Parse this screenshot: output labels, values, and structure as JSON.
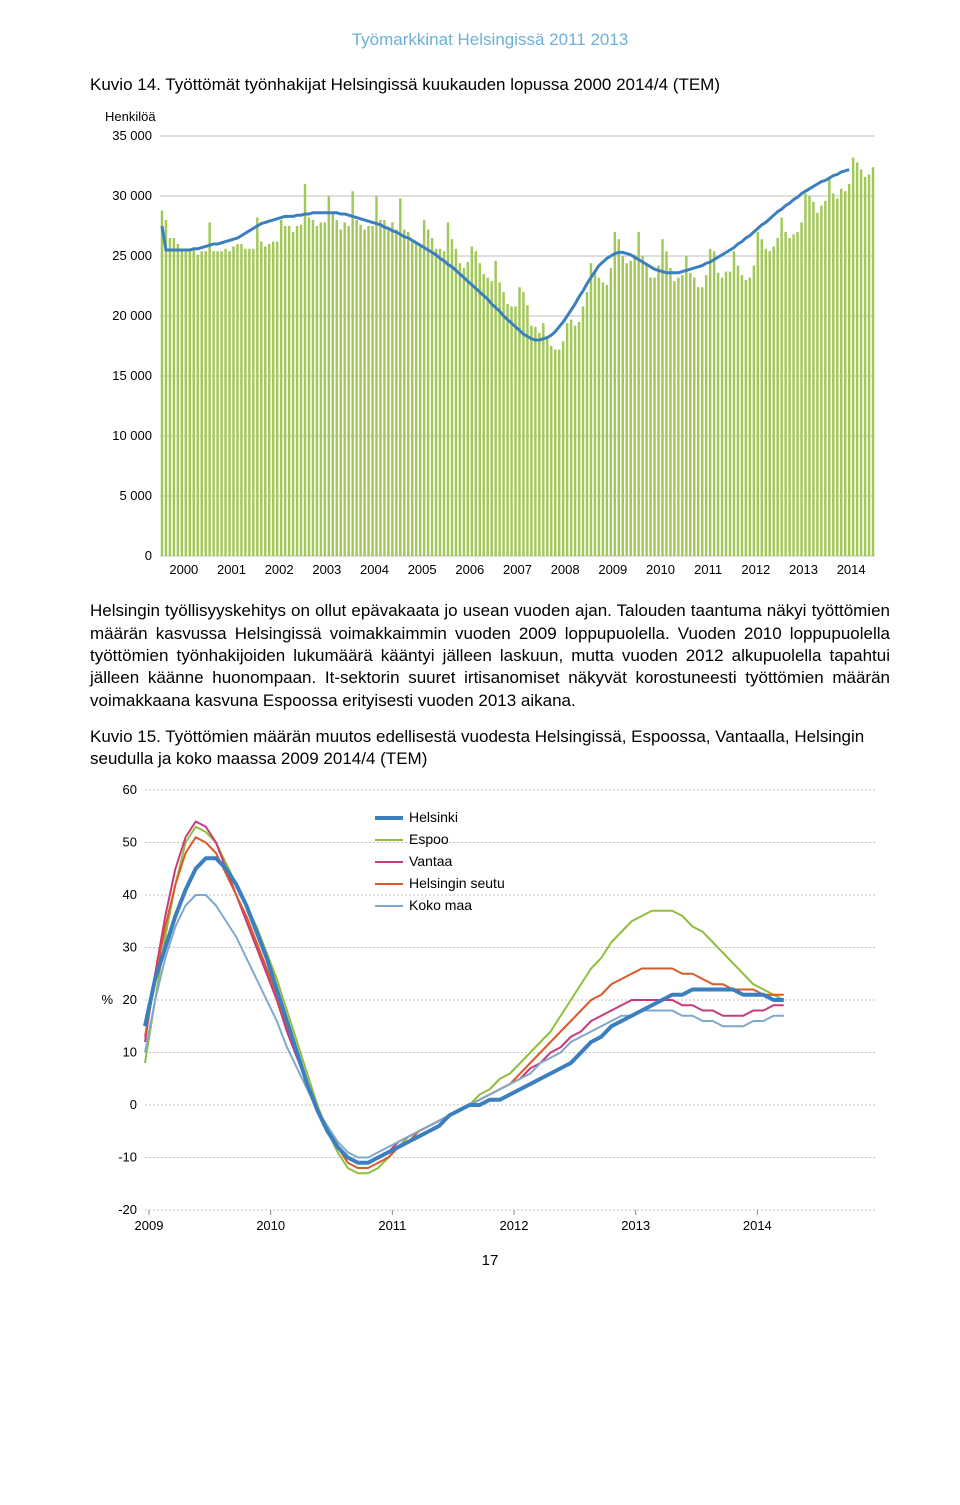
{
  "header": "Työmarkkinat Helsingissä 2011 2013",
  "pageNumber": "17",
  "fig14": {
    "title": "Kuvio 14. Työttömät työnhakijat Helsingissä kuukauden lopussa 2000 2014/4 (TEM)",
    "yAxisTitle": "Henkilöä",
    "type": "bar+line",
    "ylim": [
      0,
      35000
    ],
    "ytick_step": 5000,
    "yticks": [
      "0",
      "5 000",
      "10 000",
      "15 000",
      "20 000",
      "25 000",
      "30 000",
      "35 000"
    ],
    "xticks": [
      "2000",
      "2001",
      "2002",
      "2003",
      "2004",
      "2005",
      "2006",
      "2007",
      "2008",
      "2009",
      "2010",
      "2011",
      "2012",
      "2013",
      "2014"
    ],
    "bar_color": "#a3c85a",
    "line_color": "#3b7fbf",
    "line_width": 3,
    "grid_color": "#bfbfbf",
    "background_color": "#ffffff",
    "bars": [
      28800,
      28000,
      26500,
      26500,
      26000,
      25400,
      25400,
      25600,
      25600,
      25100,
      25400,
      25400,
      27800,
      25400,
      25400,
      25400,
      25600,
      25400,
      25800,
      26000,
      26000,
      25600,
      25600,
      25600,
      28200,
      26200,
      25800,
      26000,
      26200,
      26200,
      28000,
      27500,
      27500,
      27000,
      27500,
      27600,
      31000,
      28200,
      28000,
      27500,
      27800,
      27800,
      30000,
      28600,
      28000,
      27200,
      27800,
      27500,
      30400,
      28000,
      27600,
      27200,
      27500,
      27500,
      30000,
      28000,
      28000,
      27200,
      27800,
      27200,
      29800,
      27200,
      27000,
      26200,
      26200,
      26000,
      28000,
      27200,
      26500,
      25600,
      25600,
      25400,
      27800,
      26400,
      25600,
      24400,
      24000,
      24500,
      25800,
      25400,
      24400,
      23500,
      23200,
      22900,
      24600,
      22800,
      22000,
      21000,
      20800,
      20800,
      22400,
      22000,
      20900,
      19200,
      19100,
      18600,
      19400,
      18100,
      17500,
      17200,
      17200,
      17900,
      19400,
      19700,
      19200,
      19500,
      20800,
      22000,
      24400,
      23800,
      23200,
      22800,
      22600,
      24000,
      27000,
      26400,
      25000,
      24400,
      24600,
      25100,
      27000,
      25000,
      24400,
      23200,
      23200,
      24200,
      26400,
      25400,
      24000,
      22900,
      23200,
      23400,
      25000,
      23600,
      23200,
      22400,
      22400,
      23400,
      25600,
      25400,
      23600,
      23200,
      23700,
      23700,
      25400,
      24200,
      23400,
      23000,
      23200,
      24200,
      27000,
      26400,
      25600,
      25400,
      25800,
      26500,
      28200,
      27000,
      26500,
      26800,
      27000,
      27800,
      30200,
      30000,
      29500,
      28600,
      29200,
      29600,
      31500,
      30200,
      29800,
      30600,
      30400,
      31000,
      33200,
      32800,
      32200,
      31600,
      31800,
      32400
    ],
    "line": [
      27500,
      25500,
      25500,
      25500,
      25500,
      25500,
      25500,
      25500,
      25600,
      25600,
      25700,
      25800,
      25900,
      26000,
      26000,
      26100,
      26200,
      26300,
      26400,
      26500,
      26700,
      26900,
      27100,
      27300,
      27500,
      27700,
      27800,
      27900,
      28000,
      28100,
      28200,
      28300,
      28300,
      28300,
      28400,
      28400,
      28500,
      28500,
      28600,
      28600,
      28600,
      28600,
      28600,
      28600,
      28600,
      28500,
      28500,
      28400,
      28300,
      28200,
      28100,
      28000,
      27900,
      27800,
      27700,
      27600,
      27400,
      27300,
      27100,
      27000,
      26800,
      26600,
      26500,
      26300,
      26100,
      25900,
      25700,
      25500,
      25300,
      25100,
      24800,
      24600,
      24300,
      24100,
      23800,
      23500,
      23200,
      22900,
      22600,
      22300,
      22000,
      21700,
      21400,
      21000,
      20700,
      20400,
      20000,
      19700,
      19400,
      19100,
      18800,
      18500,
      18300,
      18100,
      18000,
      18000,
      18100,
      18200,
      18400,
      18700,
      19100,
      19500,
      20000,
      20500,
      21000,
      21600,
      22100,
      22700,
      23200,
      23700,
      24200,
      24500,
      24800,
      25000,
      25200,
      25300,
      25300,
      25200,
      25100,
      24900,
      24700,
      24500,
      24300,
      24100,
      23900,
      23800,
      23700,
      23600,
      23600,
      23600,
      23600,
      23700,
      23800,
      23900,
      24000,
      24100,
      24200,
      24400,
      24500,
      24700,
      24900,
      25100,
      25300,
      25500,
      25700,
      26000,
      26200,
      26500,
      26700,
      27000,
      27300,
      27600,
      27800,
      28100,
      28400,
      28700,
      28900,
      29200,
      29400,
      29700,
      29900,
      30200,
      30400,
      30600,
      30800,
      31000,
      31200,
      31300,
      31500,
      31700,
      31800,
      32000,
      32100,
      32200
    ]
  },
  "para1": "Helsingin työllisyyskehitys on ollut epävakaata jo usean vuoden ajan.  Talouden taantuma näkyi työttömien määrän kasvussa Helsingissä voimakkaimmin vuoden 2009 loppupuolella. Vuoden 2010 loppupuolella työttömien työnhakijoiden lukumäärä kääntyi jälleen laskuun, mutta vuoden 2012 alkupuolella tapahtui jälleen käänne huonompaan. It-sektorin suuret irtisanomiset näkyvät korostuneesti työttömien määrän voimakkaana kasvuna Espoossa erityisesti vuoden 2013 aikana.",
  "fig15": {
    "title": "Kuvio 15. Työttömien määrän muutos edellisestä vuodesta Helsingissä, Espoossa, Vantaalla, Helsingin seudulla ja koko maassa 2009 2014/4 (TEM)",
    "type": "line",
    "ylim": [
      -20,
      60
    ],
    "ytick_step": 10,
    "yticks": [
      "-20",
      "-10",
      "0",
      "10",
      "20",
      "30",
      "40",
      "50",
      "60"
    ],
    "xticks": [
      "2009",
      "2010",
      "2011",
      "2012",
      "2013",
      "2014"
    ],
    "yAxisUnit": "%",
    "grid_color": "#bfbfbf",
    "background_color": "#ffffff",
    "legend": [
      {
        "label": "Helsinki",
        "color": "#3b7fbf",
        "width": 4
      },
      {
        "label": "Espoo",
        "color": "#93bd3f",
        "width": 2
      },
      {
        "label": "Vantaa",
        "color": "#c83a7a",
        "width": 2
      },
      {
        "label": "Helsingin seutu",
        "color": "#d85a2a",
        "width": 2
      },
      {
        "label": "Koko maa",
        "color": "#7fa8cc",
        "width": 2
      }
    ],
    "series": {
      "helsinki": [
        15,
        24,
        30,
        36,
        41,
        45,
        47,
        47,
        45,
        42,
        38,
        33,
        28,
        22,
        16,
        10,
        4,
        -1,
        -5,
        -8,
        -10,
        -11,
        -11,
        -10,
        -9,
        -8,
        -7,
        -6,
        -5,
        -4,
        -2,
        -1,
        0,
        0,
        1,
        1,
        2,
        3,
        4,
        5,
        6,
        7,
        8,
        10,
        12,
        13,
        15,
        16,
        17,
        18,
        19,
        20,
        21,
        21,
        22,
        22,
        22,
        22,
        22,
        21,
        21,
        21,
        20,
        20
      ],
      "espoo": [
        8,
        20,
        32,
        42,
        50,
        53,
        52,
        50,
        46,
        42,
        38,
        34,
        29,
        24,
        18,
        12,
        6,
        0,
        -5,
        -9,
        -12,
        -13,
        -13,
        -12,
        -10,
        -8,
        -6,
        -5,
        -4,
        -3,
        -2,
        -1,
        0,
        2,
        3,
        5,
        6,
        8,
        10,
        12,
        14,
        17,
        20,
        23,
        26,
        28,
        31,
        33,
        35,
        36,
        37,
        37,
        37,
        36,
        34,
        33,
        31,
        29,
        27,
        25,
        23,
        22,
        21,
        20
      ],
      "vantaa": [
        12,
        25,
        36,
        45,
        51,
        54,
        53,
        50,
        45,
        40,
        35,
        30,
        25,
        20,
        14,
        9,
        4,
        -1,
        -5,
        -8,
        -10,
        -11,
        -11,
        -10,
        -9,
        -7,
        -6,
        -5,
        -4,
        -3,
        -2,
        -1,
        0,
        1,
        2,
        3,
        4,
        5,
        7,
        8,
        10,
        11,
        13,
        14,
        16,
        17,
        18,
        19,
        20,
        20,
        20,
        20,
        20,
        19,
        19,
        18,
        18,
        17,
        17,
        17,
        18,
        18,
        19,
        19
      ],
      "helsinginseutu": [
        13,
        24,
        34,
        42,
        48,
        51,
        50,
        48,
        44,
        40,
        36,
        31,
        26,
        21,
        15,
        10,
        4,
        -1,
        -5,
        -8,
        -11,
        -12,
        -12,
        -11,
        -10,
        -8,
        -7,
        -5,
        -4,
        -3,
        -2,
        -1,
        0,
        1,
        2,
        3,
        4,
        6,
        8,
        10,
        12,
        14,
        16,
        18,
        20,
        21,
        23,
        24,
        25,
        26,
        26,
        26,
        26,
        25,
        25,
        24,
        23,
        23,
        22,
        22,
        22,
        21,
        21,
        21
      ],
      "kokomaa": [
        10,
        20,
        28,
        34,
        38,
        40,
        40,
        38,
        35,
        32,
        28,
        24,
        20,
        16,
        11,
        7,
        3,
        -1,
        -4,
        -7,
        -9,
        -10,
        -10,
        -9,
        -8,
        -7,
        -6,
        -5,
        -4,
        -3,
        -2,
        -1,
        0,
        1,
        2,
        3,
        4,
        5,
        6,
        8,
        9,
        10,
        12,
        13,
        14,
        15,
        16,
        17,
        17,
        18,
        18,
        18,
        18,
        17,
        17,
        16,
        16,
        15,
        15,
        15,
        16,
        16,
        17,
        17
      ]
    }
  }
}
